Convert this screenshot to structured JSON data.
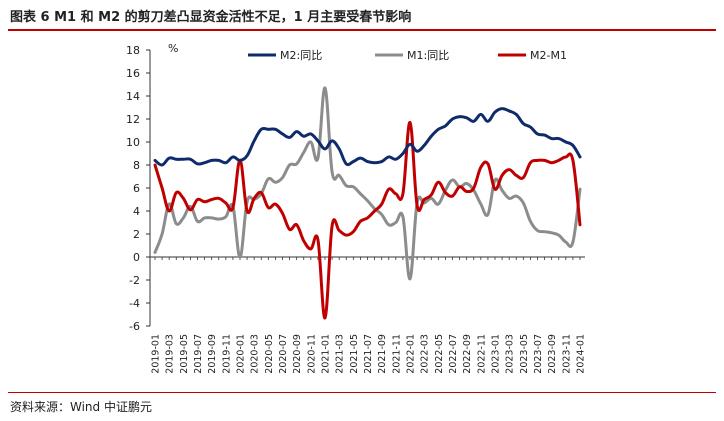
{
  "header": {
    "title": "图表 6   M1 和 M2 的剪刀差凸显资金活性不足，1 月主要受春节影响"
  },
  "footer": {
    "source": "资料来源：Wind   中证鹏元"
  },
  "chart_data": {
    "type": "line",
    "ylabel": "%",
    "ylim": [
      -6,
      18
    ],
    "yticks": [
      -6,
      -4,
      -2,
      0,
      2,
      4,
      6,
      8,
      10,
      12,
      14,
      16,
      18
    ],
    "legend_position": "top",
    "x_tick_labels": [
      "2019-01",
      "2019-03",
      "2019-05",
      "2019-07",
      "2019-09",
      "2019-11",
      "2020-01",
      "2020-03",
      "2020-05",
      "2020-07",
      "2020-09",
      "2020-11",
      "2021-01",
      "2021-03",
      "2021-05",
      "2021-07",
      "2021-09",
      "2021-11",
      "2022-01",
      "2022-03",
      "2022-05",
      "2022-07",
      "2022-09",
      "2022-11",
      "2023-01",
      "2023-03",
      "2023-05",
      "2023-07",
      "2023-09",
      "2023-11",
      "2024-01"
    ],
    "x": [
      "2019-01",
      "2019-02",
      "2019-03",
      "2019-04",
      "2019-05",
      "2019-06",
      "2019-07",
      "2019-08",
      "2019-09",
      "2019-10",
      "2019-11",
      "2019-12",
      "2020-01",
      "2020-02",
      "2020-03",
      "2020-04",
      "2020-05",
      "2020-06",
      "2020-07",
      "2020-08",
      "2020-09",
      "2020-10",
      "2020-11",
      "2020-12",
      "2021-01",
      "2021-02",
      "2021-03",
      "2021-04",
      "2021-05",
      "2021-06",
      "2021-07",
      "2021-08",
      "2021-09",
      "2021-10",
      "2021-11",
      "2021-12",
      "2022-01",
      "2022-02",
      "2022-03",
      "2022-04",
      "2022-05",
      "2022-06",
      "2022-07",
      "2022-08",
      "2022-09",
      "2022-10",
      "2022-11",
      "2022-12",
      "2023-01",
      "2023-02",
      "2023-03",
      "2023-04",
      "2023-05",
      "2023-06",
      "2023-07",
      "2023-08",
      "2023-09",
      "2023-10",
      "2023-11",
      "2023-12",
      "2024-01"
    ],
    "series": [
      {
        "name": "M2:同比",
        "color": "#0e2b6b",
        "values": [
          8.4,
          8.0,
          8.6,
          8.5,
          8.5,
          8.5,
          8.1,
          8.2,
          8.4,
          8.4,
          8.2,
          8.7,
          8.4,
          8.8,
          10.1,
          11.1,
          11.1,
          11.1,
          10.7,
          10.4,
          10.9,
          10.5,
          10.7,
          10.1,
          9.4,
          10.1,
          9.4,
          8.1,
          8.3,
          8.6,
          8.3,
          8.2,
          8.3,
          8.7,
          8.5,
          9.0,
          9.8,
          9.2,
          9.7,
          10.5,
          11.1,
          11.4,
          12.0,
          12.2,
          12.1,
          11.8,
          12.4,
          11.8,
          12.6,
          12.9,
          12.7,
          12.4,
          11.6,
          11.3,
          10.7,
          10.6,
          10.3,
          10.3,
          10.0,
          9.7,
          8.7
        ]
      },
      {
        "name": "M1:同比",
        "color": "#8c8c8c",
        "values": [
          0.4,
          2.0,
          4.6,
          2.9,
          3.4,
          4.4,
          3.1,
          3.4,
          3.4,
          3.3,
          3.5,
          4.4,
          0.0,
          4.8,
          5.0,
          5.5,
          6.8,
          6.5,
          6.9,
          8.0,
          8.1,
          9.1,
          10.0,
          8.6,
          14.7,
          7.4,
          7.1,
          6.2,
          6.1,
          5.5,
          4.9,
          4.2,
          3.7,
          2.8,
          3.0,
          3.5,
          -1.9,
          4.7,
          4.7,
          5.1,
          4.6,
          5.8,
          6.7,
          6.1,
          6.4,
          5.8,
          4.6,
          3.7,
          6.7,
          5.8,
          5.1,
          5.3,
          4.7,
          3.1,
          2.3,
          2.2,
          2.1,
          1.9,
          1.3,
          1.3,
          5.9
        ]
      },
      {
        "name": "M2-M1",
        "color": "#c00000",
        "values": [
          8.0,
          6.0,
          4.0,
          5.6,
          5.1,
          4.1,
          5.0,
          4.8,
          5.0,
          5.1,
          4.7,
          4.3,
          8.4,
          4.0,
          5.1,
          5.6,
          4.3,
          4.6,
          3.8,
          2.4,
          2.8,
          1.4,
          0.7,
          1.5,
          -5.3,
          2.7,
          2.3,
          1.9,
          2.2,
          3.1,
          3.4,
          4.0,
          4.6,
          5.9,
          5.5,
          5.5,
          11.7,
          4.5,
          5.0,
          5.4,
          6.5,
          5.6,
          5.3,
          6.1,
          5.7,
          6.0,
          7.8,
          8.1,
          5.9,
          7.1,
          7.6,
          7.1,
          6.9,
          8.2,
          8.4,
          8.4,
          8.2,
          8.4,
          8.7,
          8.4,
          2.8
        ]
      }
    ]
  }
}
